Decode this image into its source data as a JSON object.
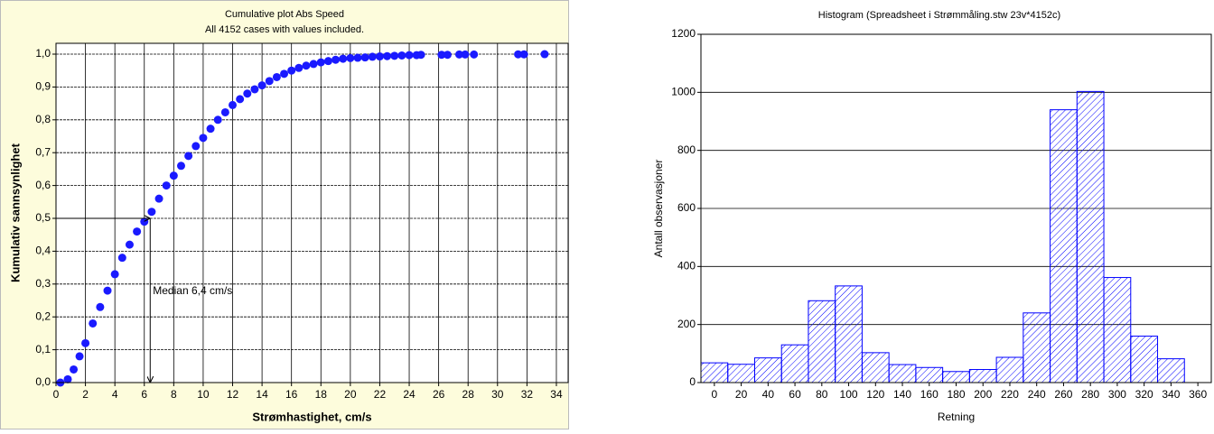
{
  "chart_data": [
    {
      "type": "scatter",
      "title": "Cumulative plot Abs Speed",
      "subtitle": "All 4152 cases with values included.",
      "x_label": "Strømhastighet, cm/s",
      "y_label": "Kumulativ sannsynlighet",
      "color": "#1a1aff",
      "x": [
        0.3,
        0.8,
        1.2,
        1.6,
        2,
        2.5,
        3,
        3.5,
        4,
        4.5,
        5,
        5.5,
        6,
        6.5,
        7,
        7.5,
        8,
        8.5,
        9,
        9.5,
        10,
        10.5,
        11,
        11.5,
        12,
        12.5,
        13,
        13.5,
        14,
        14.5,
        15,
        15.5,
        16,
        16.5,
        17,
        17.5,
        18,
        18.5,
        19,
        19.5,
        20,
        20.5,
        21,
        21.5,
        22,
        22.5,
        23,
        23.5,
        24,
        24.5,
        24.8,
        26.2,
        26.6,
        27.4,
        27.8,
        28.4,
        31.4,
        31.8,
        33.2
      ],
      "values": [
        0,
        0.01,
        0.04,
        0.08,
        0.12,
        0.18,
        0.23,
        0.28,
        0.33,
        0.38,
        0.42,
        0.46,
        0.49,
        0.52,
        0.56,
        0.6,
        0.63,
        0.66,
        0.69,
        0.72,
        0.745,
        0.773,
        0.8,
        0.823,
        0.845,
        0.863,
        0.88,
        0.893,
        0.905,
        0.918,
        0.93,
        0.94,
        0.95,
        0.958,
        0.965,
        0.97,
        0.975,
        0.979,
        0.983,
        0.986,
        0.988,
        0.989,
        0.99,
        0.992,
        0.993,
        0.994,
        0.995,
        0.996,
        0.997,
        0.997,
        0.998,
        0.998,
        0.998,
        0.999,
        0.999,
        0.999,
        0.9995,
        0.9995,
        1.0
      ],
      "annotation": {
        "text": "Median 6,4 cm/s",
        "x": 6.4,
        "y": 0.5
      },
      "xlim": [
        0,
        34.8
      ],
      "ylim": [
        0,
        1.033
      ],
      "xticks": [
        0,
        2,
        4,
        6,
        8,
        10,
        12,
        14,
        16,
        18,
        20,
        22,
        24,
        26,
        28,
        30,
        32,
        34
      ],
      "yticks": [
        {
          "value": 0,
          "label": "0,0"
        },
        {
          "value": 0.1,
          "label": "0,1"
        },
        {
          "value": 0.2,
          "label": "0,2"
        },
        {
          "value": 0.3,
          "label": "0,3"
        },
        {
          "value": 0.4,
          "label": "0,4"
        },
        {
          "value": 0.5,
          "label": "0,5"
        },
        {
          "value": 0.6,
          "label": "0,6"
        },
        {
          "value": 0.7,
          "label": "0,7"
        },
        {
          "value": 0.8,
          "label": "0,8"
        },
        {
          "value": 0.9,
          "label": "0,9"
        },
        {
          "value": 1,
          "label": "1,0"
        }
      ],
      "grid": true
    },
    {
      "type": "histogram",
      "title": "Histogram (Spreadsheet i Strømmåling.stw 23v*4152c)",
      "x_label": "Retning",
      "y_label": "Antall observasjoner",
      "color": "#0000ff",
      "bins": [
        -10,
        10,
        30,
        50,
        70,
        90,
        110,
        130,
        150,
        170,
        190,
        210,
        230,
        250,
        270,
        290,
        310,
        330,
        350
      ],
      "values": [
        68,
        63,
        85,
        130,
        282,
        333,
        103,
        62,
        52,
        38,
        45,
        87,
        240,
        940,
        1003,
        362,
        160,
        82
      ],
      "xlim": [
        -10,
        370
      ],
      "ylim": [
        0,
        1200
      ],
      "xticks": [
        0,
        20,
        40,
        60,
        80,
        100,
        120,
        140,
        160,
        180,
        200,
        220,
        240,
        260,
        280,
        300,
        320,
        340,
        360
      ],
      "yticks": [
        0,
        200,
        400,
        600,
        800,
        1000,
        1200
      ],
      "grid": true
    }
  ]
}
